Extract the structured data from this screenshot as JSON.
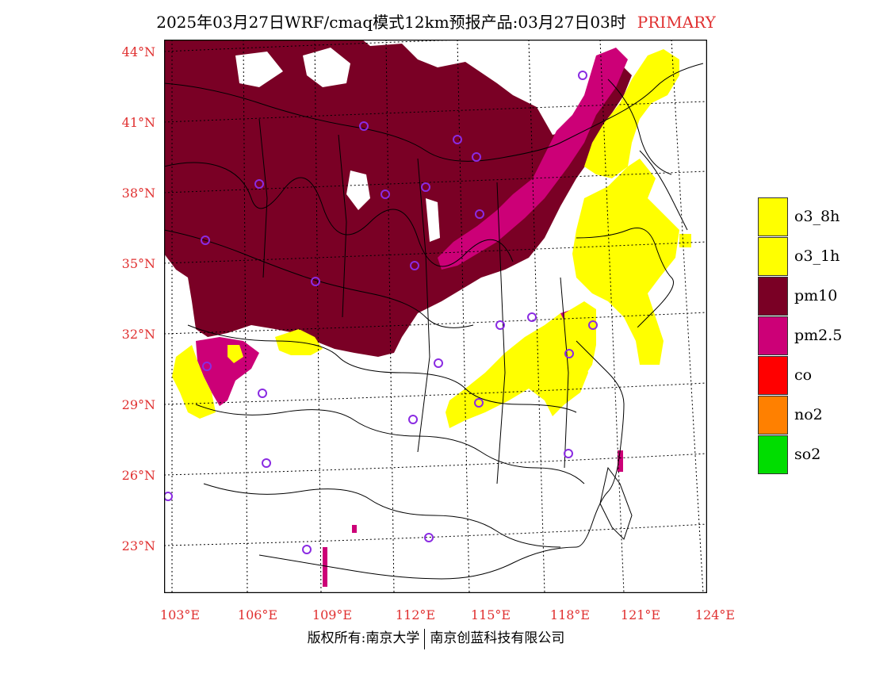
{
  "title": {
    "main": "2025年03月27日WRF/cmaq模式12km预报产品:03月27日03时",
    "tag": "PRIMARY"
  },
  "map": {
    "lat_labels": [
      "44°N",
      "41°N",
      "38°N",
      "35°N",
      "32°N",
      "29°N",
      "26°N",
      "23°N"
    ],
    "lon_labels": [
      "103°E",
      "106°E",
      "109°E",
      "112°E",
      "115°E",
      "118°E",
      "121°E",
      "124°E"
    ]
  },
  "legend": {
    "items": [
      {
        "label": "o3_8h",
        "color": "#ffff00"
      },
      {
        "label": "o3_1h",
        "color": "#ffff00"
      },
      {
        "label": "pm10",
        "color": "#7a0025"
      },
      {
        "label": "pm2.5",
        "color": "#cc0077"
      },
      {
        "label": "co",
        "color": "#ff0000"
      },
      {
        "label": "no2",
        "color": "#ff8000"
      },
      {
        "label": "so2",
        "color": "#00dd00"
      }
    ]
  },
  "footer": {
    "left": "版权所有:南京大学",
    "right": "南京创蓝科技有限公司"
  },
  "colors": {
    "pm10": "#7a0025",
    "pm25": "#cc0077",
    "o3": "#ffff00",
    "station": "#8a2be2",
    "grid_label": "#e03030"
  }
}
